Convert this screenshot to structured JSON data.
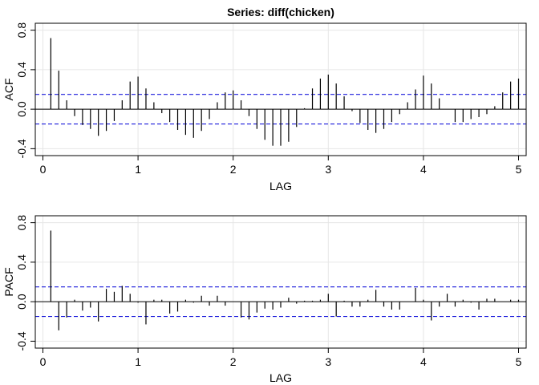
{
  "chart_data": [
    {
      "type": "bar",
      "title": "Series:  diff(chicken)",
      "xlabel": "LAG",
      "ylabel": "ACF",
      "xlim": [
        -0.08,
        5.08
      ],
      "ylim": [
        -0.47,
        0.87
      ],
      "xticks": [
        0,
        1,
        2,
        3,
        4,
        5
      ],
      "yticks": [
        -0.4,
        0.0,
        0.4,
        0.8
      ],
      "xtick_labels": [
        "0",
        "1",
        "2",
        "3",
        "4",
        "5"
      ],
      "ytick_labels": [
        "-0.4",
        "0.0",
        "0.4",
        "0.8"
      ],
      "grid": true,
      "ci_bounds": [
        0.15,
        -0.15
      ],
      "ci_color": "#1a1adb",
      "series": [
        {
          "x": [
            0.0833,
            0.1667,
            0.25,
            0.3333,
            0.4167,
            0.5,
            0.5833,
            0.6667,
            0.75,
            0.8333,
            0.9167,
            1.0,
            1.0833,
            1.1667,
            1.25,
            1.3333,
            1.4167,
            1.5,
            1.5833,
            1.6667,
            1.75,
            1.8333,
            1.9167,
            2.0,
            2.0833,
            2.1667,
            2.25,
            2.3333,
            2.4167,
            2.5,
            2.5833,
            2.6667,
            2.75,
            2.8333,
            2.9167,
            3.0,
            3.0833,
            3.1667,
            3.25,
            3.3333,
            3.4167,
            3.5,
            3.5833,
            3.6667,
            3.75,
            3.8333,
            3.9167,
            4.0,
            4.0833,
            4.1667,
            4.25,
            4.3333,
            4.4167,
            4.5,
            4.5833,
            4.6667,
            4.75,
            4.8333,
            4.9167,
            5.0
          ],
          "values": [
            0.72,
            0.39,
            0.09,
            -0.07,
            -0.16,
            -0.2,
            -0.27,
            -0.22,
            -0.12,
            0.09,
            0.28,
            0.33,
            0.21,
            0.07,
            -0.04,
            -0.13,
            -0.21,
            -0.26,
            -0.29,
            -0.22,
            -0.1,
            0.07,
            0.17,
            0.19,
            0.09,
            -0.07,
            -0.2,
            -0.31,
            -0.37,
            -0.37,
            -0.33,
            -0.18,
            0.01,
            0.21,
            0.31,
            0.35,
            0.26,
            0.13,
            -0.02,
            -0.14,
            -0.21,
            -0.24,
            -0.2,
            -0.13,
            -0.05,
            0.07,
            0.2,
            0.34,
            0.26,
            0.11,
            0.0,
            -0.13,
            -0.13,
            -0.1,
            -0.08,
            -0.05,
            0.03,
            0.17,
            0.28,
            0.31
          ]
        }
      ]
    },
    {
      "type": "bar",
      "title": "",
      "xlabel": "LAG",
      "ylabel": "PACF",
      "xlim": [
        -0.08,
        5.08
      ],
      "ylim": [
        -0.47,
        0.87
      ],
      "xticks": [
        0,
        1,
        2,
        3,
        4,
        5
      ],
      "yticks": [
        -0.4,
        0.0,
        0.4,
        0.8
      ],
      "xtick_labels": [
        "0",
        "1",
        "2",
        "3",
        "4",
        "5"
      ],
      "ytick_labels": [
        "-0.4",
        "0.0",
        "0.4",
        "0.8"
      ],
      "grid": true,
      "ci_bounds": [
        0.15,
        -0.15
      ],
      "ci_color": "#1a1adb",
      "series": [
        {
          "x": [
            0.0833,
            0.1667,
            0.25,
            0.3333,
            0.4167,
            0.5,
            0.5833,
            0.6667,
            0.75,
            0.8333,
            0.9167,
            1.0,
            1.0833,
            1.1667,
            1.25,
            1.3333,
            1.4167,
            1.5,
            1.5833,
            1.6667,
            1.75,
            1.8333,
            1.9167,
            2.0,
            2.0833,
            2.1667,
            2.25,
            2.3333,
            2.4167,
            2.5,
            2.5833,
            2.6667,
            2.75,
            2.8333,
            2.9167,
            3.0,
            3.0833,
            3.1667,
            3.25,
            3.3333,
            3.4167,
            3.5,
            3.5833,
            3.6667,
            3.75,
            3.8333,
            3.9167,
            4.0,
            4.0833,
            4.1667,
            4.25,
            4.3333,
            4.4167,
            4.5,
            4.5833,
            4.6667,
            4.75,
            4.8333,
            4.9167,
            5.0
          ],
          "values": [
            0.72,
            -0.29,
            -0.16,
            0.02,
            -0.09,
            -0.06,
            -0.2,
            0.13,
            0.1,
            0.16,
            0.08,
            -0.01,
            -0.23,
            0.02,
            0.02,
            -0.12,
            -0.1,
            0.02,
            -0.01,
            0.06,
            -0.04,
            0.06,
            -0.04,
            0.0,
            -0.16,
            -0.18,
            -0.11,
            -0.07,
            -0.08,
            -0.06,
            0.04,
            -0.02,
            0.01,
            0.01,
            0.02,
            0.08,
            -0.15,
            0.01,
            -0.05,
            -0.05,
            0.02,
            0.12,
            -0.05,
            -0.08,
            -0.08,
            0.0,
            0.14,
            0.02,
            -0.19,
            -0.05,
            0.08,
            -0.05,
            0.02,
            -0.01,
            -0.08,
            0.03,
            0.03,
            0.0,
            0.02,
            0.02
          ]
        }
      ]
    }
  ]
}
